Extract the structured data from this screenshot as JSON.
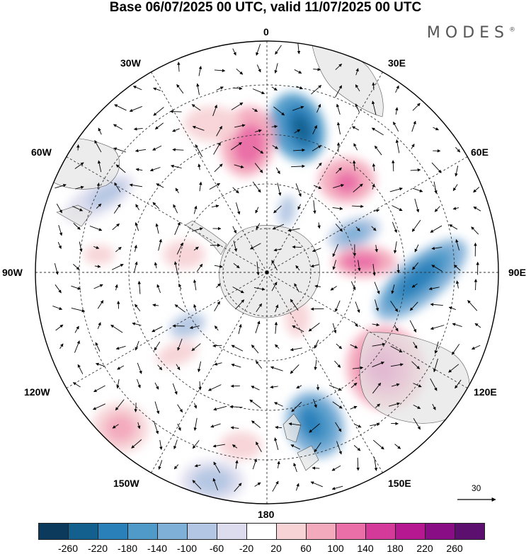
{
  "title": "Base 06/07/2025 00 UTC, valid 11/07/2025 00 UTC",
  "brand": "MODES",
  "brand_mark": "®",
  "map": {
    "projection": "south polar stereographic",
    "longitude_labels": [
      "0",
      "30E",
      "60E",
      "90E",
      "120E",
      "150E",
      "180",
      "150W",
      "120W",
      "90W",
      "60W",
      "30W"
    ],
    "reference_vector_label": "30"
  },
  "colorbar": {
    "tick_labels": [
      "-260",
      "-220",
      "-180",
      "-140",
      "-100",
      "-60",
      "-20",
      "20",
      "60",
      "100",
      "140",
      "180",
      "220",
      "260"
    ],
    "colors": [
      "#0b3a5c",
      "#13608f",
      "#2a80b9",
      "#4f9ac9",
      "#7fb0d8",
      "#b3c6e3",
      "#dcdcee",
      "#ffffff",
      "#f7d3d6",
      "#f3aabd",
      "#ea6ea8",
      "#d43a9a",
      "#b51890",
      "#890d85",
      "#5c0f6e"
    ]
  },
  "colors": {
    "land": "#e6e6e6",
    "antarctica": "#e0e0e0",
    "graticule": "#333333"
  }
}
